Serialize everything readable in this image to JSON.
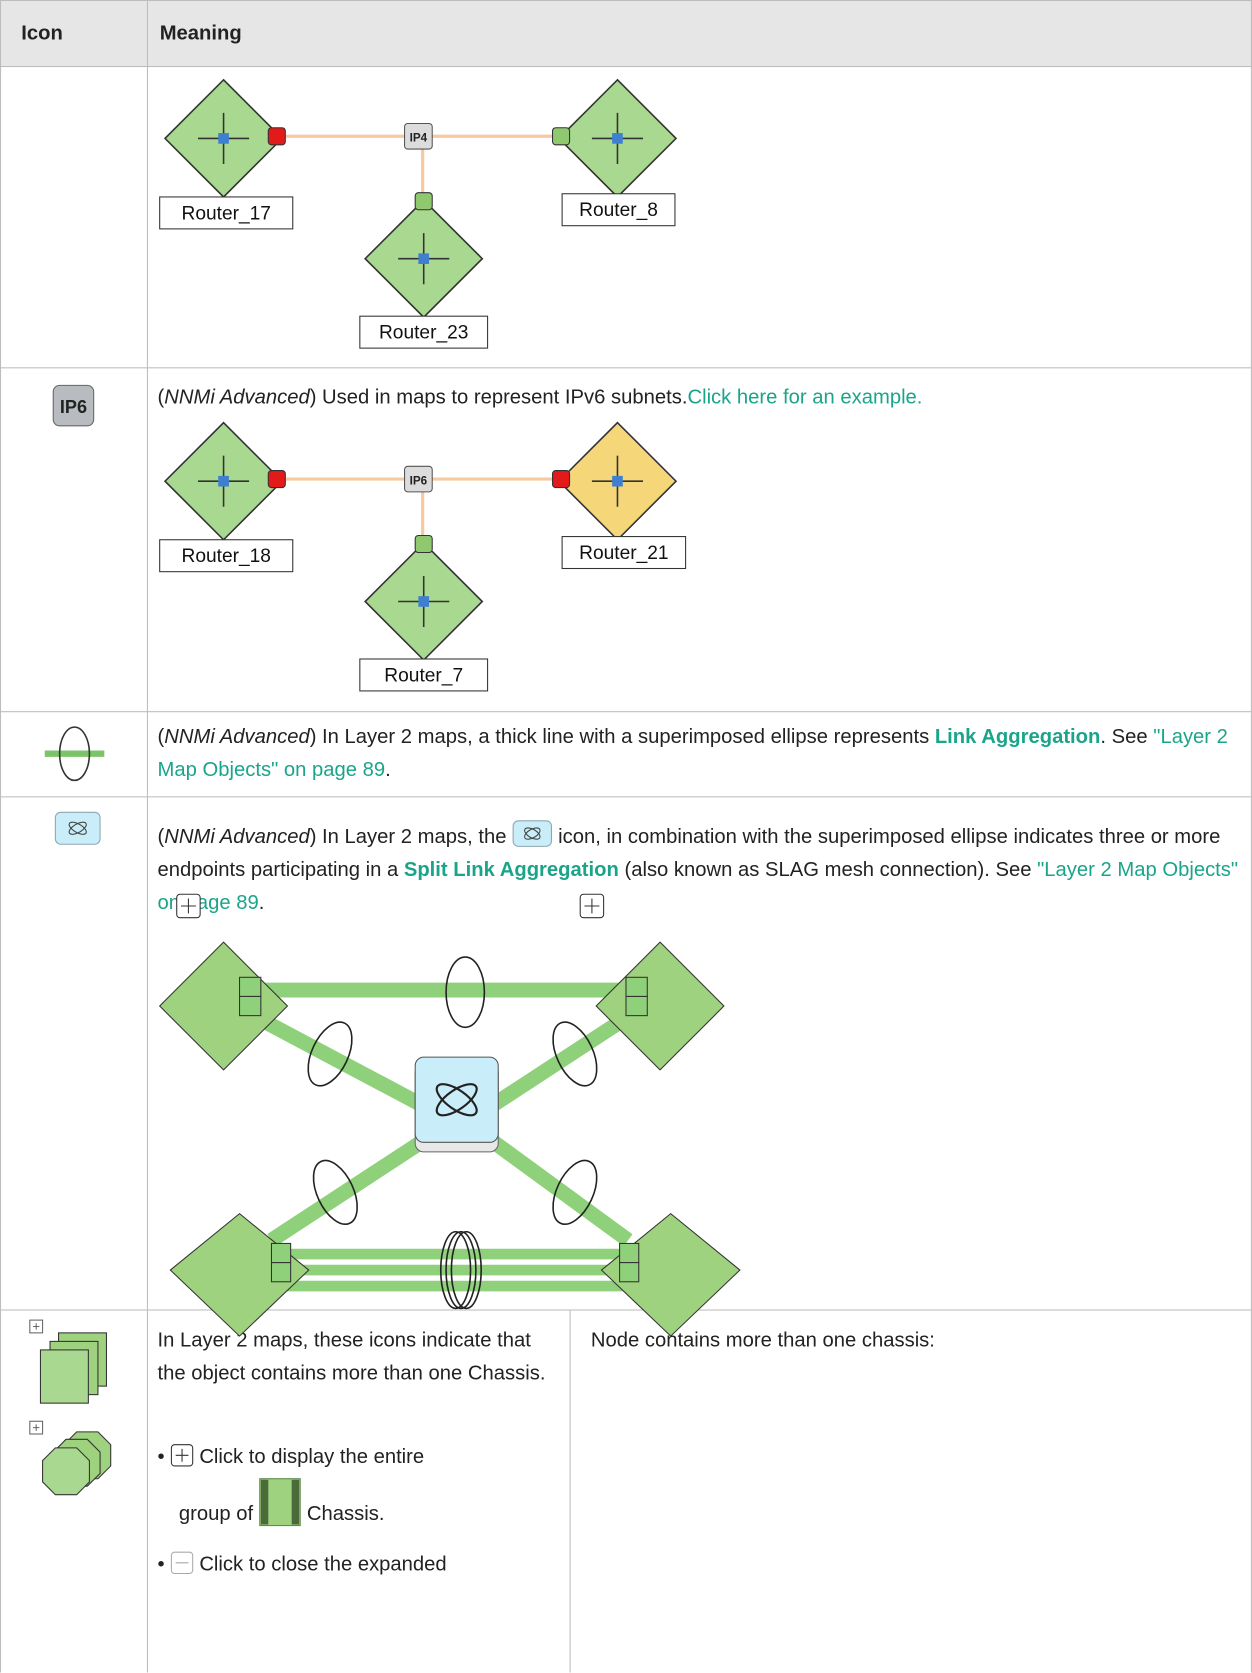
{
  "table": {
    "headers": [
      "Icon",
      "Meaning"
    ],
    "rows": [
      {
        "diagram": {
          "subnet_label": "IP4",
          "nodes": [
            "Router_17",
            "Router_8",
            "Router_23"
          ]
        }
      },
      {
        "icon_label": "IP6",
        "meaning": [
          "(",
          "NNMi Advanced",
          ") Used in maps to represent IPv6 subnets.",
          "Click here for an example."
        ],
        "diagram": {
          "subnet_label": "IP6",
          "nodes": [
            "Router_18",
            "Router_21",
            "Router_7"
          ]
        }
      },
      {
        "meaning": [
          "(",
          "NNMi Advanced",
          ") In Layer 2 maps, a thick line with a superimposed ellipse represents ",
          "Link Aggregation",
          ". See ",
          "\"Layer 2 Map Objects\" on page 89",
          "."
        ]
      },
      {
        "meaning": [
          "(",
          "NNMi Advanced",
          ") In Layer 2 maps, the ",
          " icon, in combination with the superimposed ellipse indicates three or more endpoints participating in a ",
          "Split Link Aggregation",
          " (also known as SLAG mesh connection). See ",
          "\"Layer 2 Map Objects\" on page 89",
          "."
        ]
      },
      {
        "meaning": "In Layer 2 maps, these icons indicate that the object contains more than one Chassis.",
        "bullets": [
          [
            "Click to display the entire",
            "group of",
            "Chassis."
          ],
          [
            "Click to close the expanded"
          ]
        ],
        "detail": "Node contains more than one chassis:"
      }
    ]
  }
}
